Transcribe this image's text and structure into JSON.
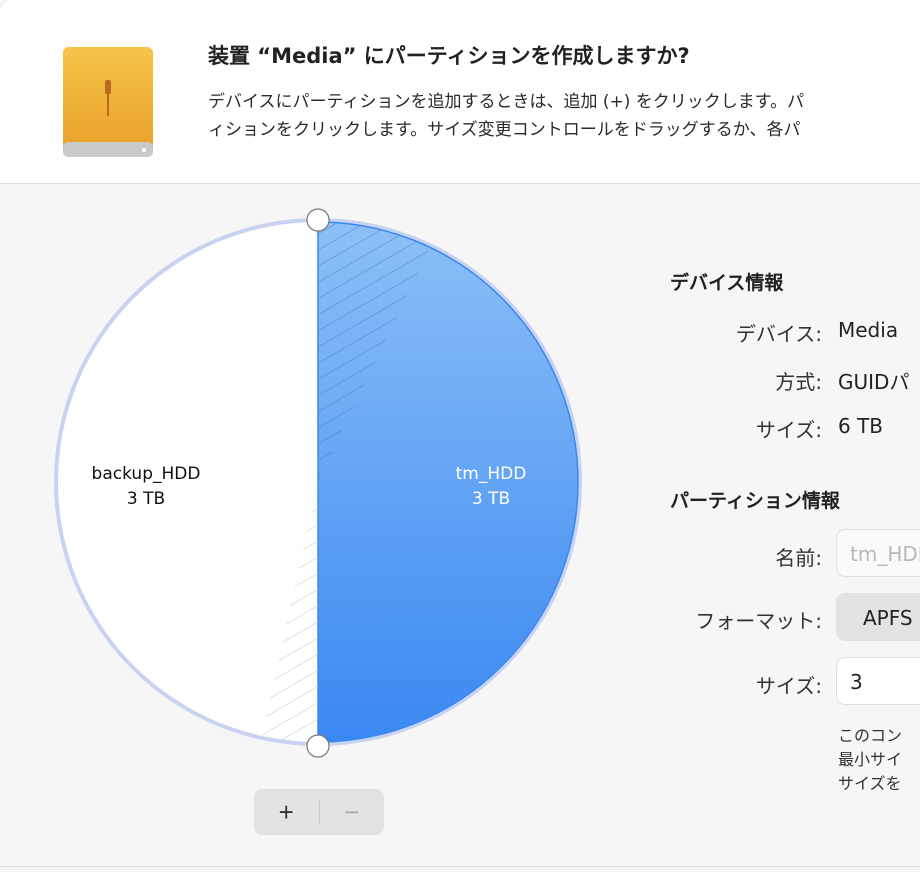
{
  "header": {
    "icon": "external-drive-icon",
    "title": "装置 “Media” にパーティションを作成しますか?",
    "description_lines": [
      "デバイスにパーティションを追加するときは、追加 (+) をクリックします。パ",
      "ィションをクリックします。サイズ変更コントロールをドラッグするか、各パ"
    ]
  },
  "pie": {
    "partitions": [
      {
        "name": "backup_HDD",
        "size": "3 TB",
        "share": 0.5,
        "color": "#ffffff"
      },
      {
        "name": "tm_HDD",
        "size": "3 TB",
        "share": 0.5,
        "color": "#4a97f4",
        "selected": true
      }
    ]
  },
  "buttons": {
    "add": "+",
    "remove": "−"
  },
  "device_info": {
    "heading": "デバイス情報",
    "rows": [
      {
        "label": "デバイス:",
        "value": "Media"
      },
      {
        "label": "方式:",
        "value": "GUIDパ"
      },
      {
        "label": "サイズ:",
        "value": "6 TB"
      }
    ]
  },
  "partition_info": {
    "heading": "パーティション情報",
    "name_label": "名前:",
    "name_placeholder": "tm_HDD",
    "format_label": "フォーマット:",
    "format_value": "APFS",
    "size_label": "サイズ:",
    "size_value": "3",
    "note_lines": [
      "このコン",
      "最小サイ",
      "サイズを"
    ]
  }
}
